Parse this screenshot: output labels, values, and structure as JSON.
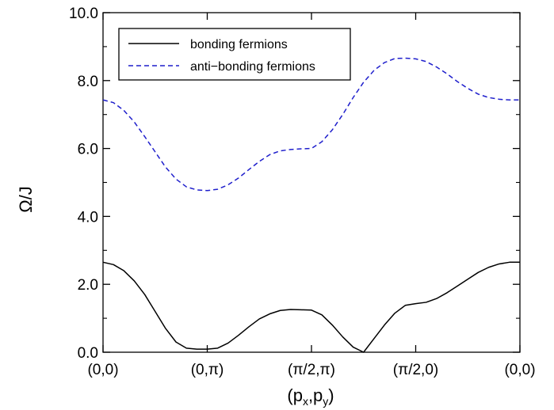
{
  "chart_data": {
    "type": "line",
    "title": "",
    "xlabel": "(p",
    "xlabel_sub1": "x",
    "xlabel_mid": ",p",
    "xlabel_sub2": "y",
    "xlabel_end": ")",
    "ylabel": "Ω/J",
    "ylim": [
      0.0,
      10.0
    ],
    "yticks": [
      "0.0",
      "2.0",
      "4.0",
      "6.0",
      "8.0",
      "10.0"
    ],
    "xlim": [
      0,
      5
    ],
    "xticks": [
      "(0,0)",
      "(0,π)",
      "(π/2,π)",
      "(π/2,0)",
      "(0,0)"
    ],
    "xtick_positions": [
      0,
      1,
      2,
      3,
      4
    ],
    "grid": false,
    "legend_position": "top-left",
    "series": [
      {
        "name": "bonding fermions",
        "color": "#000000",
        "dash": "solid",
        "x": [
          0.0,
          0.1,
          0.2,
          0.3,
          0.4,
          0.5,
          0.6,
          0.7,
          0.8,
          0.9,
          0.95,
          1.0,
          1.1,
          1.2,
          1.3,
          1.4,
          1.5,
          1.6,
          1.7,
          1.8,
          1.9,
          2.0,
          2.1,
          2.2,
          2.3,
          2.4,
          2.5,
          2.6,
          2.7,
          2.8,
          2.9,
          3.0,
          3.1,
          3.2,
          3.3,
          3.4,
          3.5,
          3.6,
          3.7,
          3.8,
          3.9,
          4.0
        ],
        "y": [
          2.65,
          2.58,
          2.4,
          2.1,
          1.7,
          1.2,
          0.7,
          0.3,
          0.12,
          0.09,
          0.09,
          0.09,
          0.12,
          0.27,
          0.5,
          0.75,
          0.98,
          1.13,
          1.23,
          1.26,
          1.25,
          1.24,
          1.1,
          0.8,
          0.45,
          0.15,
          0.0,
          0.4,
          0.8,
          1.15,
          1.38,
          1.43,
          1.47,
          1.58,
          1.75,
          1.95,
          2.15,
          2.35,
          2.5,
          2.6,
          2.65,
          2.65
        ]
      },
      {
        "name": "anti−bonding fermions",
        "color": "#1f1fcc",
        "dash": "dashed",
        "x": [
          0.0,
          0.1,
          0.2,
          0.3,
          0.4,
          0.5,
          0.6,
          0.7,
          0.8,
          0.9,
          1.0,
          1.1,
          1.2,
          1.3,
          1.4,
          1.5,
          1.6,
          1.7,
          1.8,
          1.9,
          2.0,
          2.1,
          2.2,
          2.3,
          2.4,
          2.5,
          2.6,
          2.7,
          2.8,
          2.9,
          3.0,
          3.1,
          3.2,
          3.3,
          3.4,
          3.5,
          3.6,
          3.7,
          3.8,
          3.9,
          4.0
        ],
        "y": [
          7.43,
          7.35,
          7.12,
          6.78,
          6.35,
          5.9,
          5.45,
          5.1,
          4.87,
          4.78,
          4.76,
          4.8,
          4.93,
          5.13,
          5.38,
          5.62,
          5.82,
          5.93,
          5.97,
          5.99,
          6.0,
          6.2,
          6.55,
          7.0,
          7.5,
          7.95,
          8.3,
          8.53,
          8.65,
          8.66,
          8.64,
          8.56,
          8.4,
          8.2,
          7.97,
          7.77,
          7.6,
          7.5,
          7.45,
          7.43,
          7.43
        ]
      }
    ]
  }
}
